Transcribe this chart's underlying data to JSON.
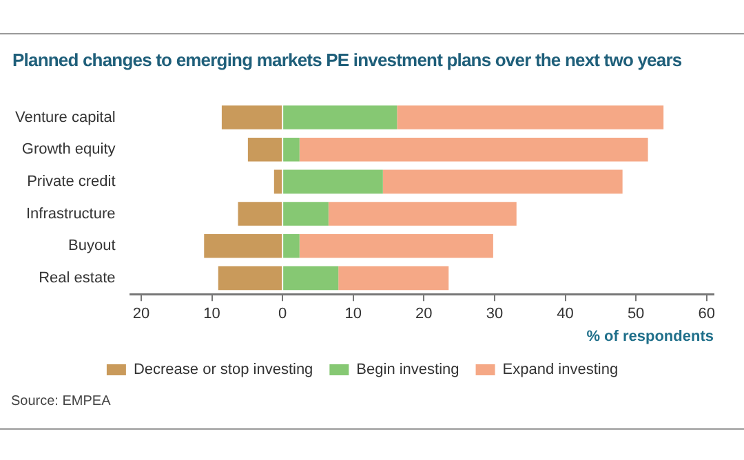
{
  "chart_data": {
    "type": "bar",
    "orientation": "horizontal",
    "stacked": true,
    "title": "Planned changes to emerging markets PE investment plans over the next two years",
    "xlabel": "% of respondents",
    "categories": [
      "Venture capital",
      "Growth equity",
      "Private credit",
      "Infrastructure",
      "Buyout",
      "Real estate"
    ],
    "series": [
      {
        "name": "Decrease or stop investing",
        "color": "#c99a5b",
        "values": [
          -8.6,
          -4.9,
          -1.2,
          -6.3,
          -11.1,
          -9.1
        ]
      },
      {
        "name": "Begin investing",
        "color": "#86c873",
        "values": [
          16.2,
          2.4,
          14.2,
          6.5,
          2.4,
          7.9
        ]
      },
      {
        "name": "Expand investing",
        "color": "#f5a886",
        "values": [
          37.7,
          49.3,
          33.9,
          26.6,
          27.4,
          15.6
        ]
      }
    ],
    "xlim": [
      -21.5,
      61
    ],
    "xticks": [
      {
        "value": -20,
        "label": "20"
      },
      {
        "value": -10,
        "label": "10"
      },
      0,
      10,
      20,
      30,
      40,
      50,
      60
    ],
    "legend": "bottom",
    "annotations": [
      "Source: EMPEA"
    ]
  }
}
